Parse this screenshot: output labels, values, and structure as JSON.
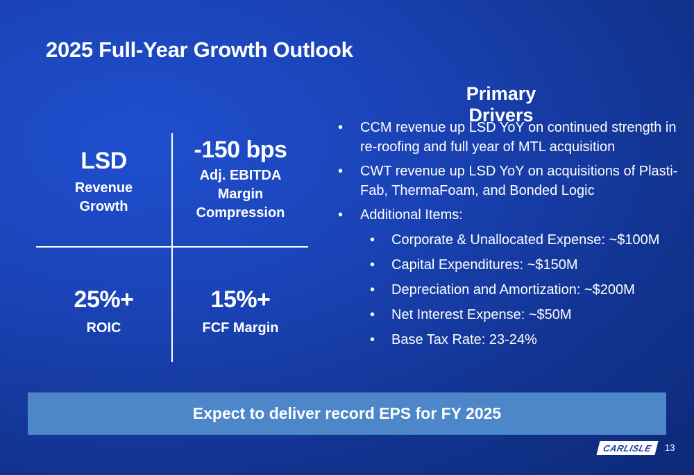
{
  "slide": {
    "title": "2025 Full-Year Growth Outlook",
    "page_number": "13",
    "logo_text": "CARLISLE"
  },
  "metrics": [
    {
      "value": "LSD",
      "lines": [
        "Revenue",
        "Growth"
      ]
    },
    {
      "value": "-150 bps",
      "lines": [
        "Adj. EBITDA",
        "Margin",
        "Compression"
      ]
    },
    {
      "value": "25%+",
      "lines": [
        "ROIC"
      ]
    },
    {
      "value": "15%+",
      "lines": [
        "FCF Margin"
      ]
    }
  ],
  "drivers": {
    "title": "Primary Drivers",
    "items": [
      "CCM revenue up LSD YoY on continued strength in re-roofing and full year of MTL acquisition",
      "CWT revenue up LSD YoY on acquisitions of Plasti-Fab, ThermaFoam, and Bonded Logic",
      "Additional Items:"
    ],
    "sub_items": [
      "Corporate & Unallocated Expense: ~$100M",
      "Capital Expenditures: ~$150M",
      "Depreciation and Amortization: ~$200M",
      "Net Interest Expense: ~$50M",
      "Base Tax Rate: 23-24%"
    ]
  },
  "banner": {
    "text": "Expect to deliver record EPS for FY 2025"
  },
  "colors": {
    "background": "#1a43b6",
    "banner": "#4d86c9",
    "text": "#ffffff"
  }
}
